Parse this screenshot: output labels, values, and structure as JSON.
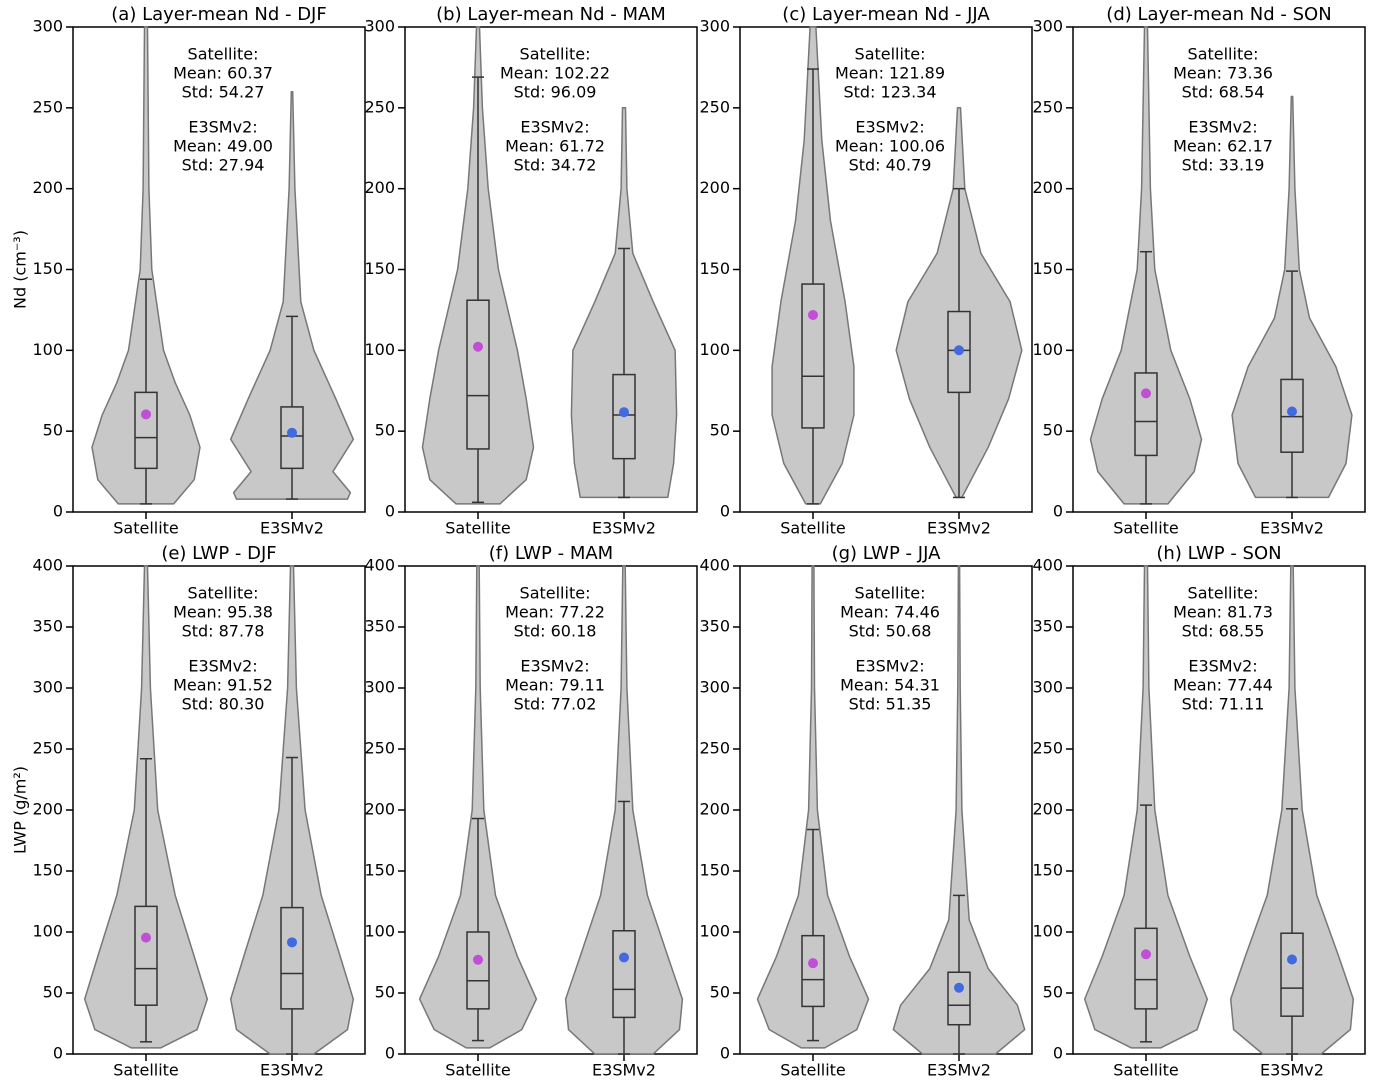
{
  "chart_data": [
    {
      "type": "violin",
      "title": "(a) Layer-mean Nd - DJF",
      "ylabel": "Nd (cm⁻³)",
      "categories": [
        "Satellite",
        "E3SMv2"
      ],
      "ylim": [
        0,
        300
      ],
      "yticks": [
        0,
        50,
        100,
        150,
        200,
        250,
        300
      ],
      "series": [
        {
          "name": "Satellite",
          "color": "#c04fd6",
          "whisker_low": 5,
          "q1": 27,
          "median": 46,
          "q3": 74,
          "whisker_high": 144,
          "mean": 60.37,
          "violin_y": [
            5,
            20,
            40,
            60,
            80,
            100,
            150,
            200,
            300
          ],
          "violin_half_width": [
            0.19,
            0.33,
            0.37,
            0.3,
            0.2,
            0.12,
            0.04,
            0.02,
            0.01
          ]
        },
        {
          "name": "E3SMv2",
          "color": "#4169e1",
          "whisker_low": 8,
          "q1": 27,
          "median": 47,
          "q3": 65,
          "whisker_high": 121,
          "mean": 49.0,
          "violin_y": [
            8,
            12,
            25,
            45,
            70,
            100,
            130,
            200,
            260
          ],
          "violin_half_width": [
            0.38,
            0.4,
            0.28,
            0.42,
            0.3,
            0.15,
            0.06,
            0.02,
            0.005
          ]
        }
      ],
      "annotations": [
        {
          "color": "#c04fd6",
          "lines": [
            "Satellite:",
            "Mean: 60.37",
            "Std: 54.27"
          ]
        },
        {
          "color": "#4169e1",
          "lines": [
            "E3SMv2:",
            "Mean: 49.00",
            "Std: 27.94"
          ]
        }
      ]
    },
    {
      "type": "violin",
      "title": "(b) Layer-mean Nd - MAM",
      "categories": [
        "Satellite",
        "E3SMv2"
      ],
      "ylim": [
        0,
        300
      ],
      "yticks": [
        0,
        50,
        100,
        150,
        200,
        250,
        300
      ],
      "series": [
        {
          "name": "Satellite",
          "color": "#c04fd6",
          "whisker_low": 6,
          "q1": 39,
          "median": 72,
          "q3": 131,
          "whisker_high": 269,
          "mean": 102.22,
          "violin_y": [
            5,
            20,
            40,
            70,
            100,
            150,
            200,
            250,
            300
          ],
          "violin_half_width": [
            0.15,
            0.33,
            0.38,
            0.33,
            0.27,
            0.14,
            0.07,
            0.03,
            0.01
          ]
        },
        {
          "name": "E3SMv2",
          "color": "#4169e1",
          "whisker_low": 9,
          "q1": 33,
          "median": 60,
          "q3": 85,
          "whisker_high": 163,
          "mean": 61.72,
          "violin_y": [
            9,
            30,
            60,
            100,
            130,
            160,
            200,
            250
          ],
          "violin_half_width": [
            0.3,
            0.34,
            0.36,
            0.35,
            0.2,
            0.06,
            0.02,
            0.01
          ]
        }
      ],
      "annotations": [
        {
          "color": "#c04fd6",
          "lines": [
            "Satellite:",
            "Mean: 102.22",
            "Std: 96.09"
          ]
        },
        {
          "color": "#4169e1",
          "lines": [
            "E3SMv2:",
            "Mean: 61.72",
            "Std: 34.72"
          ]
        }
      ]
    },
    {
      "type": "violin",
      "title": "(c) Layer-mean Nd - JJA",
      "categories": [
        "Satellite",
        "E3SMv2"
      ],
      "ylim": [
        0,
        300
      ],
      "yticks": [
        0,
        50,
        100,
        150,
        200,
        250,
        300
      ],
      "series": [
        {
          "name": "Satellite",
          "color": "#c04fd6",
          "whisker_low": 5,
          "q1": 52,
          "median": 84,
          "q3": 141,
          "whisker_high": 274,
          "mean": 121.89,
          "violin_y": [
            5,
            30,
            60,
            90,
            130,
            180,
            230,
            300
          ],
          "violin_half_width": [
            0.05,
            0.2,
            0.28,
            0.28,
            0.22,
            0.12,
            0.06,
            0.02
          ]
        },
        {
          "name": "E3SMv2",
          "color": "#4169e1",
          "whisker_low": 9,
          "q1": 74,
          "median": 100,
          "q3": 124,
          "whisker_high": 200,
          "mean": 100.06,
          "violin_y": [
            9,
            40,
            70,
            100,
            130,
            160,
            200,
            250
          ],
          "violin_half_width": [
            0.02,
            0.2,
            0.34,
            0.43,
            0.35,
            0.15,
            0.04,
            0.01
          ]
        }
      ],
      "annotations": [
        {
          "color": "#c04fd6",
          "lines": [
            "Satellite:",
            "Mean: 121.89",
            "Std: 123.34"
          ]
        },
        {
          "color": "#4169e1",
          "lines": [
            "E3SMv2:",
            "Mean: 100.06",
            "Std: 40.79"
          ]
        }
      ]
    },
    {
      "type": "violin",
      "title": "(d) Layer-mean Nd - SON",
      "categories": [
        "Satellite",
        "E3SMv2"
      ],
      "ylim": [
        0,
        300
      ],
      "yticks": [
        0,
        50,
        100,
        150,
        200,
        250,
        300
      ],
      "series": [
        {
          "name": "Satellite",
          "color": "#c04fd6",
          "whisker_low": 5,
          "q1": 35,
          "median": 56,
          "q3": 86,
          "whisker_high": 161,
          "mean": 73.36,
          "violin_y": [
            5,
            25,
            45,
            70,
            100,
            150,
            200,
            300
          ],
          "violin_half_width": [
            0.15,
            0.33,
            0.38,
            0.3,
            0.17,
            0.06,
            0.03,
            0.01
          ]
        },
        {
          "name": "E3SMv2",
          "color": "#4169e1",
          "whisker_low": 9,
          "q1": 37,
          "median": 59,
          "q3": 82,
          "whisker_high": 149,
          "mean": 62.17,
          "violin_y": [
            9,
            30,
            60,
            90,
            120,
            150,
            200,
            257
          ],
          "violin_half_width": [
            0.25,
            0.37,
            0.41,
            0.3,
            0.12,
            0.05,
            0.02,
            0.005
          ]
        }
      ],
      "annotations": [
        {
          "color": "#c04fd6",
          "lines": [
            "Satellite:",
            "Mean: 73.36",
            "Std: 68.54"
          ]
        },
        {
          "color": "#4169e1",
          "lines": [
            "E3SMv2:",
            "Mean: 62.17",
            "Std: 33.19"
          ]
        }
      ]
    },
    {
      "type": "violin",
      "title": "(e) LWP - DJF",
      "ylabel": "LWP (g/m²)",
      "categories": [
        "Satellite",
        "E3SMv2"
      ],
      "ylim": [
        0,
        400
      ],
      "yticks": [
        0,
        50,
        100,
        150,
        200,
        250,
        300,
        350,
        400
      ],
      "series": [
        {
          "name": "Satellite",
          "color": "#c04fd6",
          "whisker_low": 10,
          "q1": 40,
          "median": 70,
          "q3": 121,
          "whisker_high": 242,
          "mean": 95.38,
          "violin_y": [
            5,
            20,
            45,
            80,
            130,
            200,
            300,
            400
          ],
          "violin_half_width": [
            0.1,
            0.35,
            0.42,
            0.33,
            0.2,
            0.08,
            0.03,
            0.01
          ]
        },
        {
          "name": "E3SMv2",
          "color": "#4169e1",
          "whisker_low": 0,
          "q1": 37,
          "median": 66,
          "q3": 120,
          "whisker_high": 243,
          "mean": 91.52,
          "violin_y": [
            0,
            20,
            45,
            80,
            130,
            200,
            300,
            400
          ],
          "violin_half_width": [
            0.15,
            0.38,
            0.42,
            0.33,
            0.2,
            0.09,
            0.03,
            0.01
          ]
        }
      ],
      "annotations": [
        {
          "color": "#c04fd6",
          "lines": [
            "Satellite:",
            "Mean: 95.38",
            "Std: 87.78"
          ]
        },
        {
          "color": "#4169e1",
          "lines": [
            "E3SMv2:",
            "Mean: 91.52",
            "Std: 80.30"
          ]
        }
      ]
    },
    {
      "type": "violin",
      "title": "(f) LWP - MAM",
      "categories": [
        "Satellite",
        "E3SMv2"
      ],
      "ylim": [
        0,
        400
      ],
      "yticks": [
        0,
        50,
        100,
        150,
        200,
        250,
        300,
        350,
        400
      ],
      "series": [
        {
          "name": "Satellite",
          "color": "#c04fd6",
          "whisker_low": 11,
          "q1": 37,
          "median": 60,
          "q3": 100,
          "whisker_high": 193,
          "mean": 77.22,
          "violin_y": [
            5,
            20,
            45,
            80,
            130,
            200,
            300,
            400
          ],
          "violin_half_width": [
            0.08,
            0.3,
            0.4,
            0.27,
            0.12,
            0.04,
            0.015,
            0.008
          ]
        },
        {
          "name": "E3SMv2",
          "color": "#4169e1",
          "whisker_low": 0,
          "q1": 30,
          "median": 53,
          "q3": 101,
          "whisker_high": 207,
          "mean": 79.11,
          "violin_y": [
            0,
            20,
            45,
            80,
            130,
            200,
            300,
            400
          ],
          "violin_half_width": [
            0.2,
            0.38,
            0.4,
            0.3,
            0.16,
            0.06,
            0.02,
            0.008
          ]
        }
      ],
      "annotations": [
        {
          "color": "#c04fd6",
          "lines": [
            "Satellite:",
            "Mean: 77.22",
            "Std: 60.18"
          ]
        },
        {
          "color": "#4169e1",
          "lines": [
            "E3SMv2:",
            "Mean: 79.11",
            "Std: 77.02"
          ]
        }
      ]
    },
    {
      "type": "violin",
      "title": "(g) LWP - JJA",
      "categories": [
        "Satellite",
        "E3SMv2"
      ],
      "ylim": [
        0,
        400
      ],
      "yticks": [
        0,
        50,
        100,
        150,
        200,
        250,
        300,
        350,
        400
      ],
      "series": [
        {
          "name": "Satellite",
          "color": "#c04fd6",
          "whisker_low": 11,
          "q1": 39,
          "median": 61,
          "q3": 97,
          "whisker_high": 184,
          "mean": 74.46,
          "violin_y": [
            5,
            20,
            45,
            80,
            130,
            200,
            300,
            400
          ],
          "violin_half_width": [
            0.08,
            0.3,
            0.38,
            0.25,
            0.1,
            0.03,
            0.01,
            0.006
          ]
        },
        {
          "name": "E3SMv2",
          "color": "#4169e1",
          "whisker_low": 0,
          "q1": 24,
          "median": 40,
          "q3": 67,
          "whisker_high": 130,
          "mean": 54.31,
          "violin_y": [
            0,
            20,
            40,
            70,
            110,
            200,
            300,
            400
          ],
          "violin_half_width": [
            0.25,
            0.45,
            0.4,
            0.2,
            0.07,
            0.02,
            0.008,
            0.004
          ]
        }
      ],
      "annotations": [
        {
          "color": "#c04fd6",
          "lines": [
            "Satellite:",
            "Mean: 74.46",
            "Std: 50.68"
          ]
        },
        {
          "color": "#4169e1",
          "lines": [
            "E3SMv2:",
            "Mean: 54.31",
            "Std: 51.35"
          ]
        }
      ]
    },
    {
      "type": "violin",
      "title": "(h) LWP - SON",
      "categories": [
        "Satellite",
        "E3SMv2"
      ],
      "ylim": [
        0,
        400
      ],
      "yticks": [
        0,
        50,
        100,
        150,
        200,
        250,
        300,
        350,
        400
      ],
      "series": [
        {
          "name": "Satellite",
          "color": "#c04fd6",
          "whisker_low": 10,
          "q1": 37,
          "median": 61,
          "q3": 103,
          "whisker_high": 204,
          "mean": 81.73,
          "violin_y": [
            5,
            20,
            45,
            80,
            130,
            200,
            300,
            400
          ],
          "violin_half_width": [
            0.1,
            0.35,
            0.42,
            0.3,
            0.15,
            0.06,
            0.02,
            0.01
          ]
        },
        {
          "name": "E3SMv2",
          "color": "#4169e1",
          "whisker_low": 0,
          "q1": 31,
          "median": 54,
          "q3": 99,
          "whisker_high": 201,
          "mean": 77.44,
          "violin_y": [
            0,
            20,
            45,
            80,
            130,
            200,
            300,
            400
          ],
          "violin_half_width": [
            0.2,
            0.4,
            0.42,
            0.32,
            0.17,
            0.07,
            0.02,
            0.008
          ]
        }
      ],
      "annotations": [
        {
          "color": "#c04fd6",
          "lines": [
            "Satellite:",
            "Mean: 81.73",
            "Std: 68.55"
          ]
        },
        {
          "color": "#4169e1",
          "lines": [
            "E3SMv2:",
            "Mean: 77.44",
            "Std: 71.11"
          ]
        }
      ]
    }
  ]
}
